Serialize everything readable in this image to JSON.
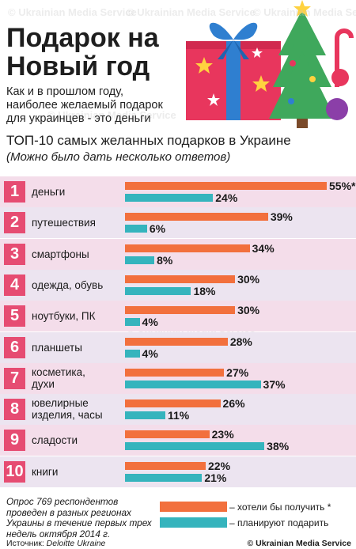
{
  "header": {
    "title": "Подарок на Новый год",
    "subtitle": "Как и в прошлом году, наиболее желаемый подарок для украинцев - это деньги",
    "chart_title": "ТОП-10 самых желанных подарков в Украине",
    "chart_subtitle": "(Можно было дать несколько ответов)"
  },
  "watermark": "Ukrainian Media Service",
  "colors": {
    "want": "#f2703d",
    "plan": "#35b4bd",
    "number_box": "#e64c72",
    "row_pink": "#f4ddea",
    "row_lilac": "#ece4f0"
  },
  "chart_data": {
    "type": "bar",
    "orientation": "horizontal",
    "categories": [
      "деньги",
      "путешествия",
      "смартфоны",
      "одежда, обувь",
      "ноутбуки, ПК",
      "планшеты",
      "косметика, духи",
      "ювелирные изделия, часы",
      "сладости",
      "книги"
    ],
    "ranks": [
      "1",
      "2",
      "3",
      "4",
      "5",
      "6",
      "7",
      "8",
      "9",
      "10"
    ],
    "series": [
      {
        "name": "хотели бы получить *",
        "values": [
          55,
          39,
          34,
          30,
          30,
          28,
          27,
          26,
          23,
          22
        ]
      },
      {
        "name": "планируют подарить",
        "values": [
          24,
          6,
          8,
          18,
          4,
          4,
          37,
          11,
          38,
          21
        ]
      }
    ],
    "value_labels": [
      [
        "55%*",
        "39%",
        "34%",
        "30%",
        "30%",
        "28%",
        "27%",
        "26%",
        "23%",
        "22%"
      ],
      [
        "24%",
        "6%",
        "8%",
        "18%",
        "4%",
        "4%",
        "37%",
        "11%",
        "38%",
        "21%"
      ]
    ],
    "xlim": [
      0,
      55
    ],
    "legend": "bottom-right"
  },
  "footer": {
    "note": "Опрос 769 респондентов проведен в разных регионах Украины в течение первых трех недель октября 2014 г.",
    "source_label": "Источник:",
    "source_name": "Deloitte Ukraine",
    "copyright": "© Ukrainian Media Service"
  }
}
